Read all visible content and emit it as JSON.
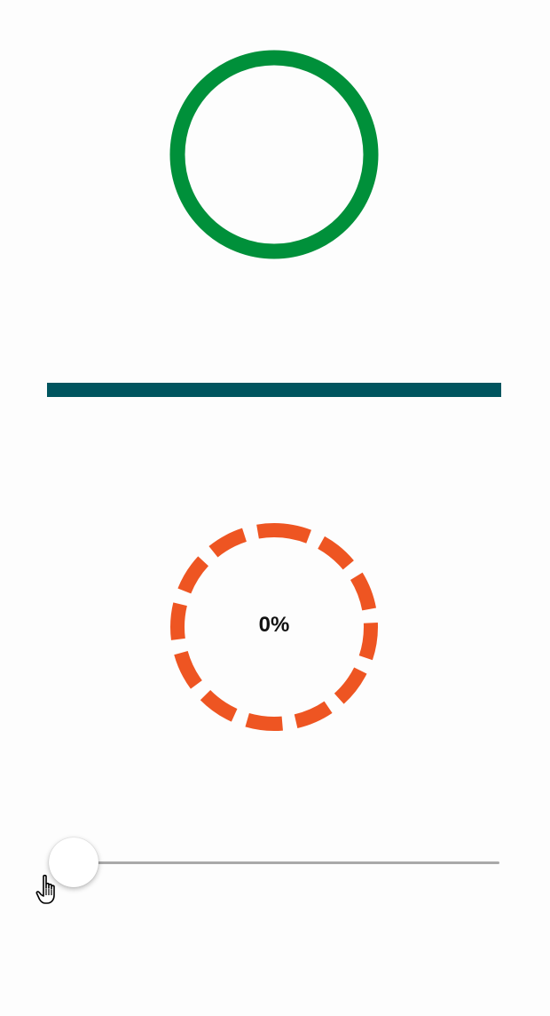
{
  "colors": {
    "ring": "#00903a",
    "bar": "#00555f",
    "dashed": "#ee5522",
    "track": "#a9a9a9"
  },
  "ring_progress": {
    "value": 100
  },
  "bar_progress": {
    "value": 100
  },
  "dashed_progress": {
    "label": "0%",
    "value": 0
  },
  "slider": {
    "value": 0
  },
  "icons": {
    "cursor": "hand-pointer-icon"
  }
}
